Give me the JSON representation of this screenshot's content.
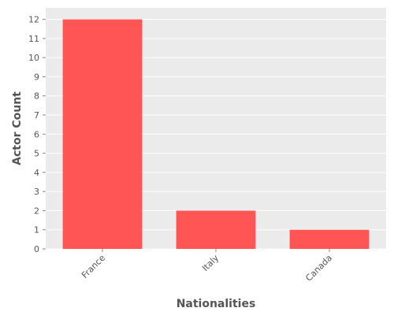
{
  "chart_data": {
    "type": "bar",
    "title": "",
    "xlabel": "Nationalities",
    "ylabel": "Actor Count",
    "categories": [
      "France",
      "Italy",
      "Canada"
    ],
    "values": [
      12,
      2,
      1
    ],
    "ylim": [
      0,
      12.6
    ],
    "yticks": [
      "0",
      "1",
      "2",
      "3",
      "4",
      "5",
      "6",
      "7",
      "8",
      "9",
      "10",
      "11",
      "12"
    ],
    "grid": true,
    "bar_color": "#ff5555",
    "plot_background": "#ebebeb",
    "grid_color": "#ffffff",
    "text_color": "#555555"
  }
}
